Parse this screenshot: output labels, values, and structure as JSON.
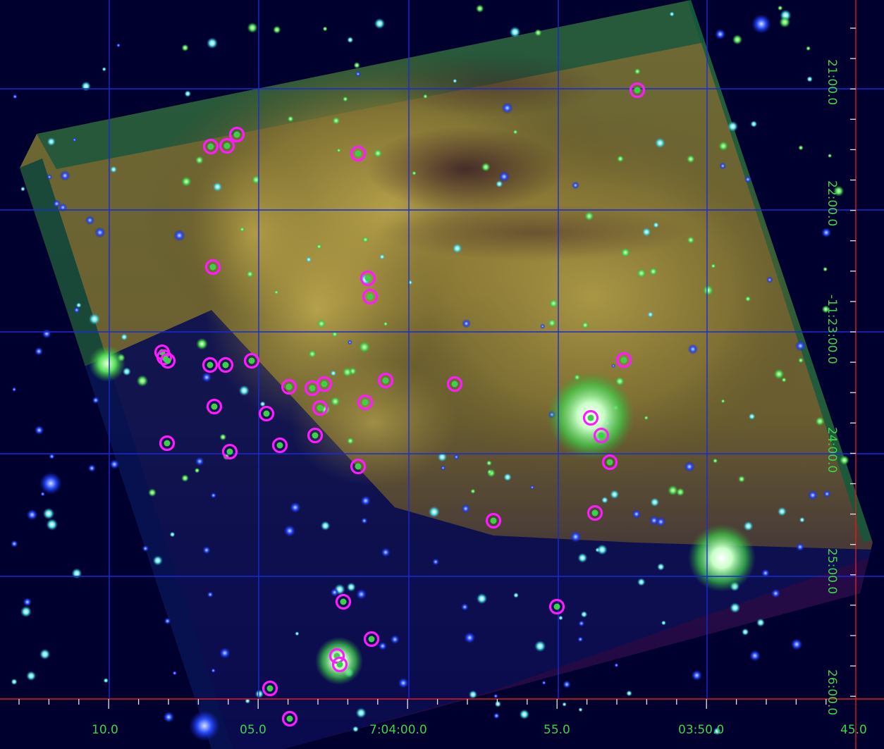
{
  "axes": {
    "ra_tick_labels": [
      "10.0",
      "05.0",
      "7:04:00.0",
      "55.0",
      "03:50.0",
      "45.0"
    ],
    "dec_tick_labels": [
      "21:00.0",
      "22:00.0",
      "-11:23:00.0",
      "24:00.0",
      "25:00.0",
      "26:00.0"
    ]
  },
  "colors": {
    "grid": "#1a2bd6",
    "axis": "#e01a1a",
    "labels": "#3fd24a",
    "markers": "#ff1aff",
    "background": "#00002e",
    "nebula": "#9a8a3c"
  }
}
